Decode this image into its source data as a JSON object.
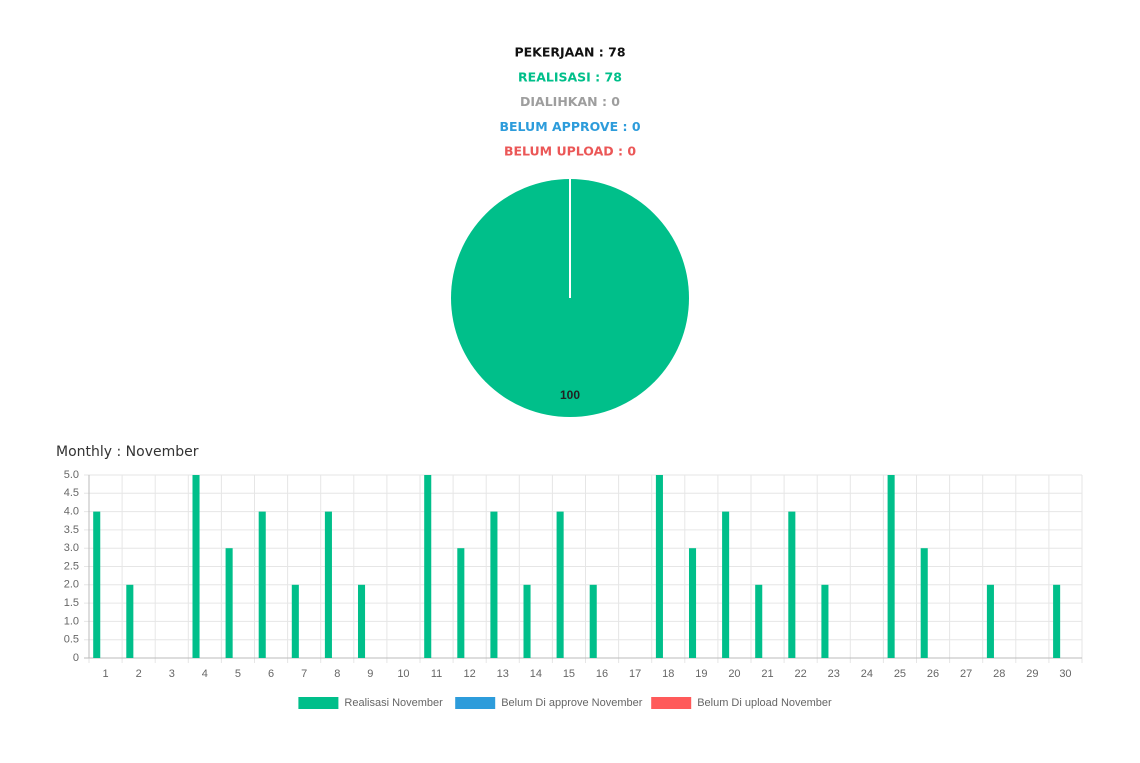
{
  "summary": {
    "lines": [
      {
        "text": "PEKERJAAN : 78",
        "color": "#111111"
      },
      {
        "text": "REALISASI : 78",
        "color": "#00bf8a"
      },
      {
        "text": "DIALIHKAN : 0",
        "color": "#9e9e9e"
      },
      {
        "text": "BELUM APPROVE : 0",
        "color": "#2d9cdb"
      },
      {
        "text": "BELUM UPLOAD : 0",
        "color": "#eb5757"
      }
    ]
  },
  "chart_data": [
    {
      "type": "pie",
      "values": [
        100
      ],
      "colors": [
        "#00bf8a"
      ]
    },
    {
      "type": "bar",
      "title": "Monthly : November",
      "categories": [
        "1",
        "2",
        "3",
        "4",
        "5",
        "6",
        "7",
        "8",
        "9",
        "10",
        "11",
        "12",
        "13",
        "14",
        "15",
        "16",
        "17",
        "18",
        "19",
        "20",
        "21",
        "22",
        "23",
        "24",
        "25",
        "26",
        "27",
        "28",
        "29",
        "30"
      ],
      "series": [
        {
          "name": "Realisasi November",
          "color": "#00bf8a",
          "values": [
            4,
            2,
            0,
            5,
            3,
            4,
            2,
            4,
            2,
            0,
            5,
            3,
            4,
            2,
            4,
            2,
            0,
            5,
            3,
            4,
            2,
            4,
            2,
            0,
            5,
            3,
            0,
            2,
            0,
            2
          ]
        },
        {
          "name": "Belum Di approve November",
          "color": "#2d9cdb",
          "values": [
            0,
            0,
            0,
            0,
            0,
            0,
            0,
            0,
            0,
            0,
            0,
            0,
            0,
            0,
            0,
            0,
            0,
            0,
            0,
            0,
            0,
            0,
            0,
            0,
            0,
            0,
            0,
            0,
            0,
            0
          ]
        },
        {
          "name": "Belum Di upload November",
          "color": "#ff5a5a",
          "values": [
            0,
            0,
            0,
            0,
            0,
            0,
            0,
            0,
            0,
            0,
            0,
            0,
            0,
            0,
            0,
            0,
            0,
            0,
            0,
            0,
            0,
            0,
            0,
            0,
            0,
            0,
            0,
            0,
            0,
            0
          ]
        }
      ],
      "ylim": [
        0,
        5
      ],
      "yticks": [
        0,
        0.5,
        {
          "value": 1,
          "label": "1.0"
        },
        1.5,
        {
          "value": 2,
          "label": "2.0"
        },
        2.5,
        {
          "value": 3,
          "label": "3.0"
        },
        3.5,
        {
          "value": 4,
          "label": "4.0"
        },
        4.5,
        {
          "value": 5,
          "label": "5.0"
        }
      ],
      "grid": true,
      "legend": "bottom"
    }
  ]
}
